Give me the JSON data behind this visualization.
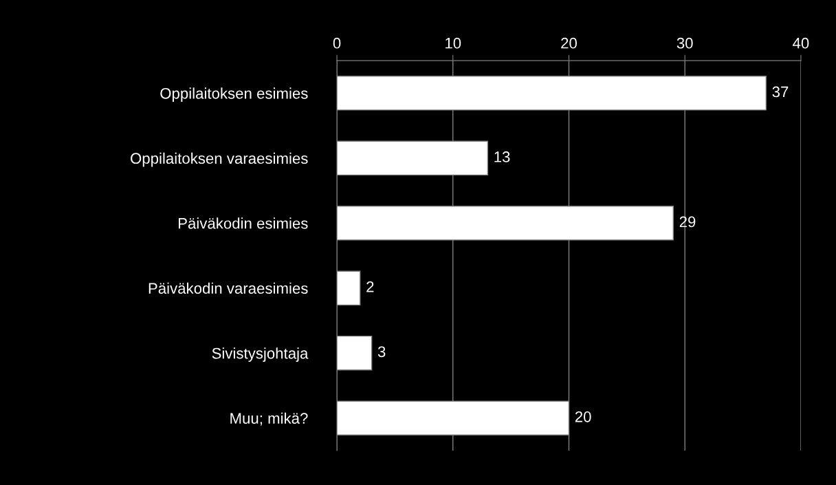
{
  "chart_data": {
    "type": "bar",
    "orientation": "horizontal",
    "categories": [
      "Oppilaitoksen esimies",
      "Oppilaitoksen varaesimies",
      "Päiväkodin esimies",
      "Päiväkodin varaesimies",
      "Sivistysjohtaja",
      "Muu; mikä?"
    ],
    "values": [
      37,
      13,
      29,
      2,
      3,
      20
    ],
    "color": "#ffffff",
    "data_labels": true,
    "xlim": [
      0,
      40
    ],
    "xticks": [
      0,
      10,
      20,
      30,
      40
    ],
    "grid": "x",
    "legend": false
  }
}
